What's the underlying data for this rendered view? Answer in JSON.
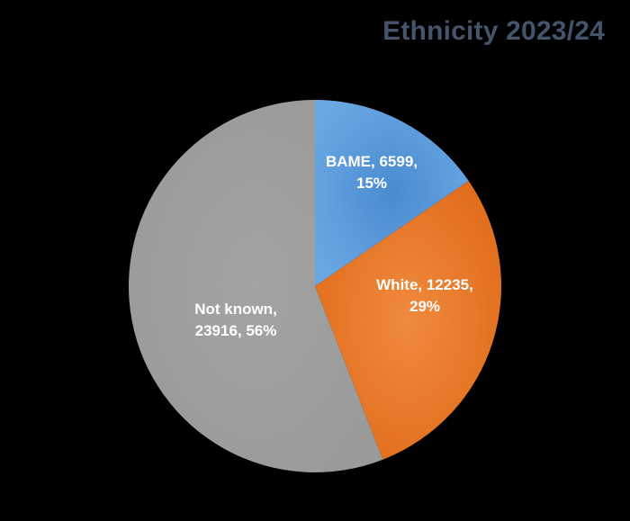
{
  "chart_data": {
    "type": "pie",
    "title": "Ethnicity 2023/24",
    "start_angle_deg": 0,
    "direction": "clockwise",
    "slices": [
      {
        "name": "BAME",
        "value": 6599,
        "percent": "15%",
        "color": "#5b9bd5",
        "label_lines": [
          "BAME, 6599,",
          "15%"
        ]
      },
      {
        "name": "White",
        "value": 12235,
        "percent": "29%",
        "color": "#ed7d31",
        "label_lines": [
          "White, 12235,",
          "29%"
        ]
      },
      {
        "name": "Not known",
        "value": 23916,
        "percent": "56%",
        "color": "#a5a5a5",
        "label_lines": [
          "Not known,",
          "23916, 56%"
        ]
      }
    ]
  }
}
